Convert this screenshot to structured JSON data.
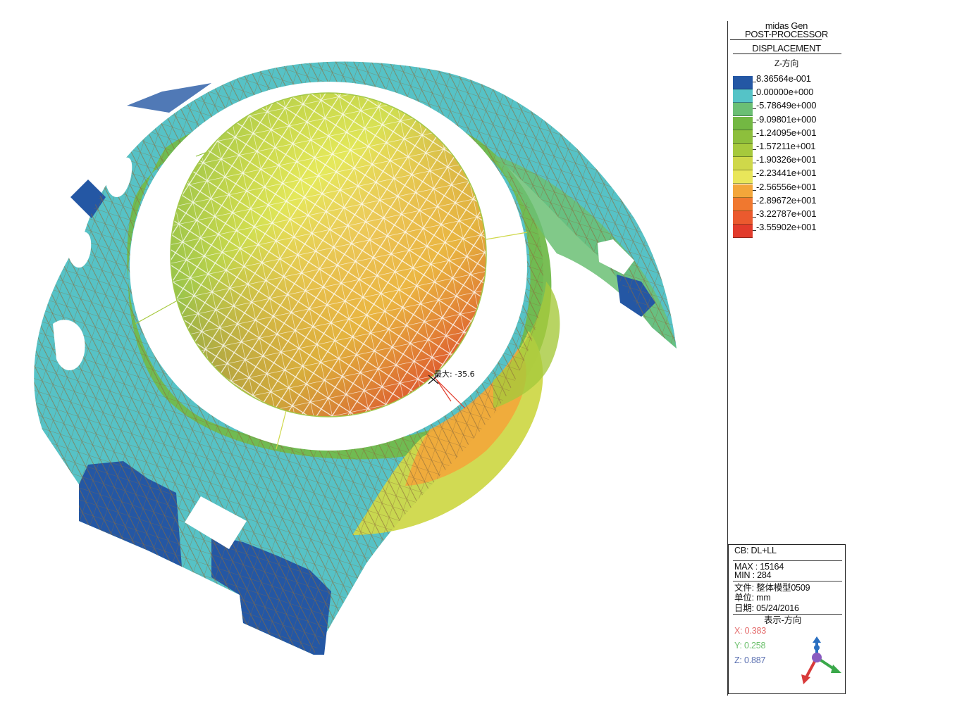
{
  "header": {
    "app": "midas Gen",
    "module": "POST-PROCESSOR",
    "result": "DISPLACEMENT",
    "direction": "Z-方向"
  },
  "legend": {
    "items": [
      {
        "value": "8.36564e-001",
        "color": "#2457a4"
      },
      {
        "value": "0.00000e+000",
        "color": "#55c3c7"
      },
      {
        "value": "-5.78649e+000",
        "color": "#6bbf74"
      },
      {
        "value": "-9.09801e+000",
        "color": "#73b843"
      },
      {
        "value": "-1.24095e+001",
        "color": "#8dbf3c"
      },
      {
        "value": "-1.57211e+001",
        "color": "#a6c93c"
      },
      {
        "value": "-1.90326e+001",
        "color": "#cfd84a"
      },
      {
        "value": "-2.23441e+001",
        "color": "#e9e65a"
      },
      {
        "value": "-2.56556e+001",
        "color": "#f3a63a"
      },
      {
        "value": "-2.89672e+001",
        "color": "#f0782f"
      },
      {
        "value": "-3.22787e+001",
        "color": "#eb5a2e"
      },
      {
        "value": "-3.55902e+001",
        "color": "#e23b2b"
      }
    ]
  },
  "annotation": {
    "max_label": "最大: -35.6"
  },
  "info": {
    "combo": "CB: DL+LL",
    "max": "MAX : 15164",
    "min": "MIN : 284",
    "file": "文件: 整体模型0509",
    "unit": "单位: mm",
    "date": "日期: 05/24/2016",
    "view_title": "表示-方向",
    "x": "X: 0.383",
    "y": "Y: 0.258",
    "z": "Z: 0.887",
    "x_color": "#e36a6a",
    "y_color": "#6cc06c",
    "z_color": "#5a6fb0"
  }
}
